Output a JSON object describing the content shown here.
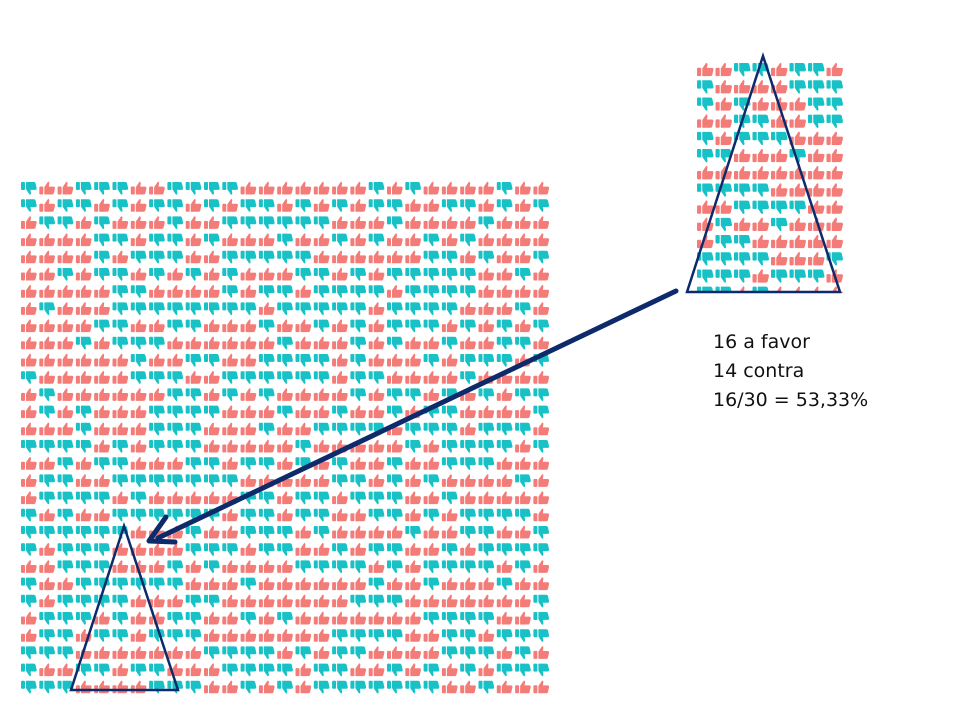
{
  "colors": {
    "favor": "#f47c78",
    "contra": "#17c1c6",
    "outline": "#0d2a6b",
    "text": "#111111"
  },
  "icons": {
    "favor": "thumbs-up-icon",
    "contra": "thumbs-down-icon"
  },
  "population": {
    "columns": 29,
    "rows": 30,
    "contra_fraction": 0.4667
  },
  "sample": {
    "columns": 8,
    "rows": 14,
    "favor": 16,
    "contra": 14
  },
  "caption": {
    "line1": "16 a favor",
    "line2": "14 contra",
    "line3": "16/30 = 53,33%"
  }
}
